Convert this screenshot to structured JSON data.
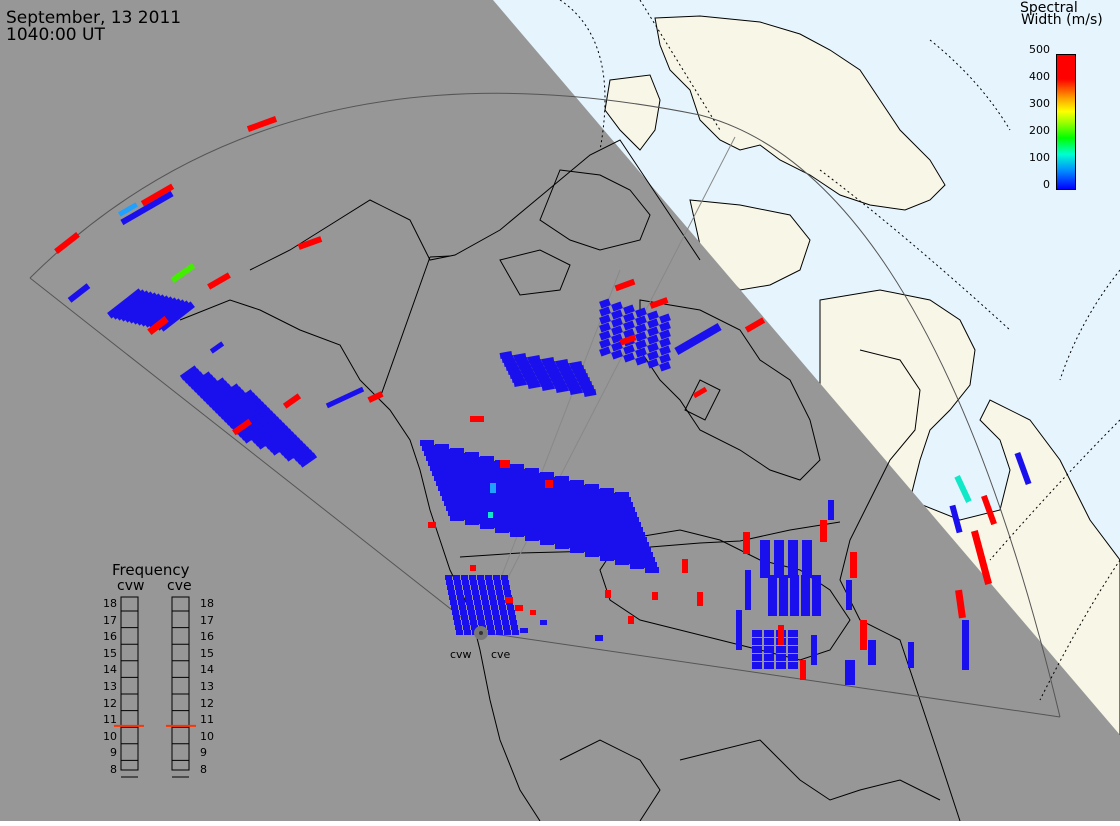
{
  "header": {
    "date": "September, 13 2011",
    "time": "1040:00 UT"
  },
  "colorbar": {
    "title_line1": "Spectral",
    "title_line2": "Width (m/s)",
    "ticks": [
      "500",
      "400",
      "300",
      "200",
      "100",
      "0"
    ]
  },
  "frequency_panel": {
    "title": "Frequency",
    "radars": [
      "cvw",
      "cve"
    ],
    "ticks": [
      "18",
      "17",
      "16",
      "15",
      "14",
      "13",
      "12",
      "11",
      "10",
      "9",
      "8"
    ],
    "marker_value": 10.6,
    "marker_color": "#ff3300"
  },
  "stations": [
    "cvw",
    "cve"
  ],
  "colors": {
    "night": "#979797",
    "land": "#f8f6e6",
    "ocean": "#e6f5fd",
    "low": "#1a10ee",
    "high": "#ff0000",
    "mid_cyan": "#10e8c8",
    "mid_green": "#44ee00",
    "light_blue": "#20a0ff"
  }
}
